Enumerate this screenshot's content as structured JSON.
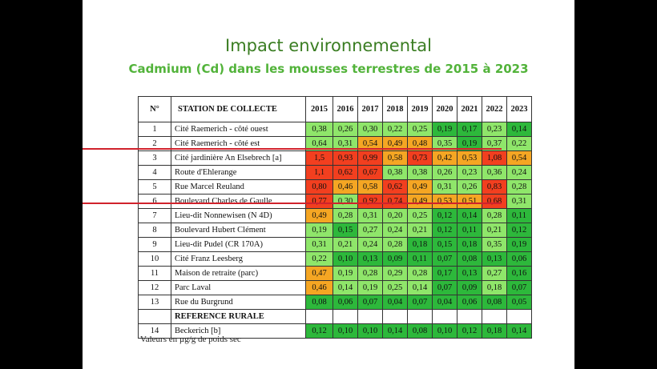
{
  "title": "Impact environnemental",
  "subtitle": "Cadmium (Cd) dans les mousses terrestres de 2015 à 2023",
  "headers": {
    "no": "N°",
    "station": "STATION DE COLLECTE",
    "years": [
      "2015",
      "2016",
      "2017",
      "2018",
      "2019",
      "2020",
      "2021",
      "2022",
      "2023"
    ]
  },
  "rows": [
    {
      "no": "1",
      "station": "Cité Raemerich - côté ouest",
      "values": [
        "0,38",
        "0,26",
        "0,30",
        "0,22",
        "0,25",
        "0,19",
        "0,17",
        "0,23",
        "0,14"
      ]
    },
    {
      "no": "2",
      "station": "Cité Raemerich - côté est",
      "values": [
        "0,64",
        "0,31",
        "0,54",
        "0,49",
        "0,48",
        "0,35",
        "0,19",
        "0,37",
        "0,22"
      ]
    },
    {
      "no": "3",
      "station": "Cité jardinière An Elsebrech [a]",
      "values": [
        "1,5",
        "0,93",
        "0,99",
        "0,58",
        "0,73",
        "0,42",
        "0,53",
        "1,08",
        "0,54"
      ]
    },
    {
      "no": "4",
      "station": "Route d'Ehlerange",
      "values": [
        "1,1",
        "0,62",
        "0,67",
        "0,38",
        "0,38",
        "0,26",
        "0,23",
        "0,36",
        "0,24"
      ]
    },
    {
      "no": "5",
      "station": "Rue Marcel Reuland",
      "values": [
        "0,80",
        "0,46",
        "0,58",
        "0,62",
        "0,49",
        "0,31",
        "0,26",
        "0,83",
        "0,28"
      ]
    },
    {
      "no": "6",
      "station": "Boulevard Charles de Gaulle",
      "values": [
        "0,77",
        "0,30",
        "0,92",
        "0,74",
        "0,49",
        "0,53",
        "0,51",
        "0,68",
        "0,31"
      ]
    },
    {
      "no": "7",
      "station": "Lieu-dit Nonnewisen (N 4D)",
      "values": [
        "0,49",
        "0,28",
        "0,31",
        "0,20",
        "0,25",
        "0,12",
        "0,14",
        "0,28",
        "0,11"
      ]
    },
    {
      "no": "8",
      "station": "Boulevard Hubert Clément",
      "values": [
        "0,19",
        "0,15",
        "0,27",
        "0,24",
        "0,21",
        "0,12",
        "0,11",
        "0,21",
        "0,12"
      ]
    },
    {
      "no": "9",
      "station": "Lieu-dit Pudel (CR 170A)",
      "values": [
        "0,31",
        "0,21",
        "0,24",
        "0,28",
        "0,18",
        "0,15",
        "0,18",
        "0,35",
        "0,19"
      ]
    },
    {
      "no": "10",
      "station": "Cité Franz Leesberg",
      "values": [
        "0,22",
        "0,10",
        "0,13",
        "0,09",
        "0,11",
        "0,07",
        "0,08",
        "0,13",
        "0,06"
      ]
    },
    {
      "no": "11",
      "station": "Maison de retraite (parc)",
      "values": [
        "0,47",
        "0,19",
        "0,28",
        "0,29",
        "0,28",
        "0,17",
        "0,13",
        "0,27",
        "0,16"
      ]
    },
    {
      "no": "12",
      "station": "Parc Laval",
      "values": [
        "0,46",
        "0,14",
        "0,19",
        "0,25",
        "0,14",
        "0,07",
        "0,09",
        "0,18",
        "0,07"
      ]
    },
    {
      "no": "13",
      "station": "Rue du Burgrund",
      "values": [
        "0,08",
        "0,06",
        "0,07",
        "0,04",
        "0,07",
        "0,04",
        "0,06",
        "0,08",
        "0,05"
      ]
    }
  ],
  "rural_header": "REFERENCE RURALE",
  "rural_row": {
    "no": "14",
    "station": "Beckerich [b]",
    "values": [
      "0,12",
      "0,10",
      "0,10",
      "0,14",
      "0,08",
      "0,10",
      "0,12",
      "0,18",
      "0,14"
    ]
  },
  "note": "Valeurs en µg/g de poids sec",
  "colors": {
    "dark_green": "#2db83b",
    "light_green": "#8fe66a",
    "yellow": "#ffe44d",
    "orange": "#f5a623",
    "red": "#f23f1f",
    "frame_red": "#d0222c"
  }
}
